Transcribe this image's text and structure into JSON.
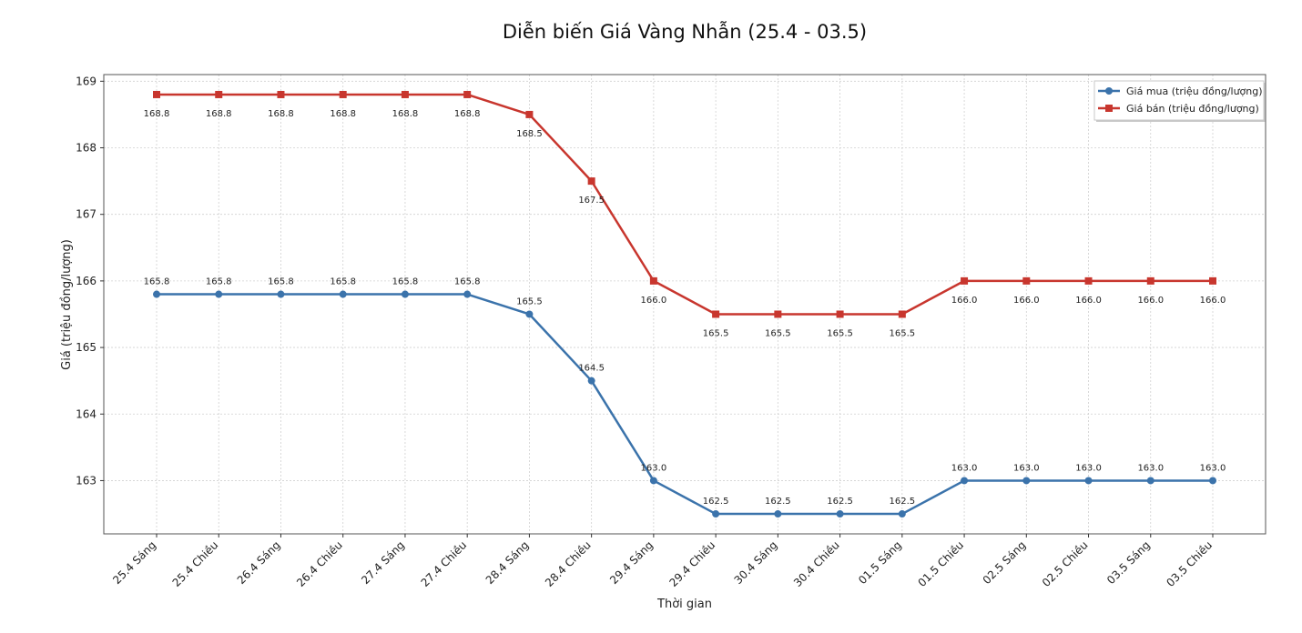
{
  "chart_data": {
    "type": "line",
    "title": "Diễn biến Giá Vàng Nhẫn (25.4 - 03.5)",
    "xlabel": "Thời gian",
    "ylabel": "Giá (triệu đồng/lượng)",
    "categories": [
      "25.4 Sáng",
      "25.4 Chiều",
      "26.4 Sáng",
      "26.4 Chiều",
      "27.4 Sáng",
      "27.4 Chiều",
      "28.4 Sáng",
      "28.4 Chiều",
      "29.4 Sáng",
      "29.4 Chiều",
      "30.4 Sáng",
      "30.4 Chiều",
      "01.5 Sáng",
      "01.5 Chiều",
      "02.5 Sáng",
      "02.5 Chiều",
      "03.5 Sáng",
      "03.5 Chiều"
    ],
    "series": [
      {
        "name": "Giá mua (triệu đồng/lượng)",
        "color": "#3b73ab",
        "marker": "circle",
        "label_position": "above",
        "values": [
          165.8,
          165.8,
          165.8,
          165.8,
          165.8,
          165.8,
          165.5,
          164.5,
          163.0,
          162.5,
          162.5,
          162.5,
          162.5,
          163.0,
          163.0,
          163.0,
          163.0,
          163.0
        ],
        "labels": [
          "165.8",
          "165.8",
          "165.8",
          "165.8",
          "165.8",
          "165.8",
          "165.5",
          "164.5",
          "163.0",
          "162.5",
          "162.5",
          "162.5",
          "162.5",
          "163.0",
          "163.0",
          "163.0",
          "163.0",
          "163.0"
        ]
      },
      {
        "name": "Giá bán (triệu đồng/lượng)",
        "color": "#c8362e",
        "marker": "square",
        "label_position": "below",
        "values": [
          168.8,
          168.8,
          168.8,
          168.8,
          168.8,
          168.8,
          168.5,
          167.5,
          166.0,
          165.5,
          165.5,
          165.5,
          165.5,
          166.0,
          166.0,
          166.0,
          166.0,
          166.0
        ],
        "labels": [
          "168.8",
          "168.8",
          "168.8",
          "168.8",
          "168.8",
          "168.8",
          "168.5",
          "167.5",
          "166.0",
          "165.5",
          "165.5",
          "165.5",
          "165.5",
          "166.0",
          "166.0",
          "166.0",
          "166.0",
          "166.0"
        ]
      }
    ],
    "ylim": [
      162.2,
      169.1
    ],
    "yticks": [
      163,
      164,
      165,
      166,
      167,
      168,
      169
    ],
    "grid": true,
    "legend": "top-right"
  }
}
